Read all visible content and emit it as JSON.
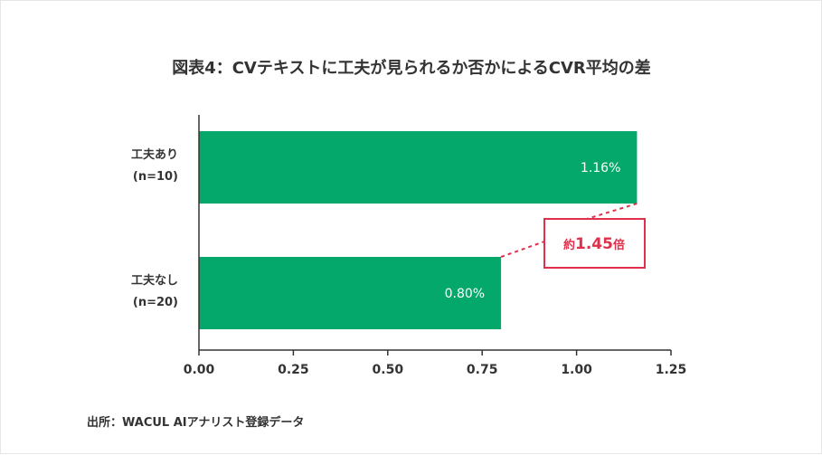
{
  "chart_data": {
    "type": "bar",
    "orientation": "horizontal",
    "title": "図表4：CVテキストに工夫が見られるか否かによるCVR平均の差",
    "categories": [
      [
        "工夫あり",
        "(n=10)"
      ],
      [
        "工夫なし",
        "(n=20)"
      ]
    ],
    "values": [
      1.16,
      0.8
    ],
    "value_labels": [
      "1.16%",
      "0.80%"
    ],
    "xlim": [
      0,
      1.25
    ],
    "xticks": [
      "0.00",
      "0.25",
      "0.50",
      "0.75",
      "1.00",
      "1.25"
    ],
    "grid": false,
    "bar_color": "#05a86b",
    "annotation": {
      "prefix": "約",
      "value": "1.45",
      "suffix": "倍",
      "color": "#e0304a"
    },
    "source": "出所：WACUL AIアナリスト登録データ"
  }
}
